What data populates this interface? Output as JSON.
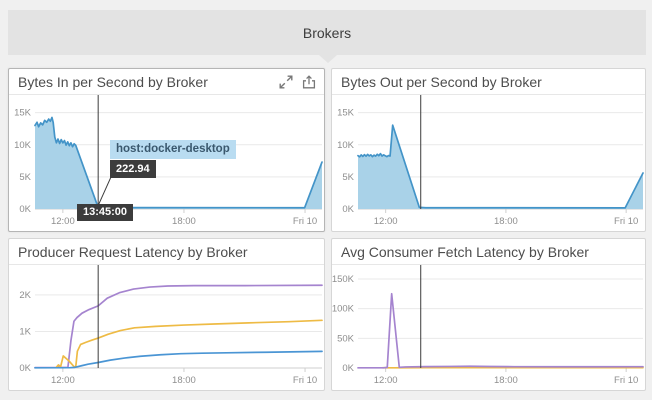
{
  "header": {
    "title": "Brokers"
  },
  "colors": {
    "area_fill": "#a9d2e8",
    "area_line": "#4394c8",
    "purple": "#a584cf",
    "yellow": "#eebb45",
    "blue": "#4a95d4",
    "cursor": "#3b3b3b",
    "tooltip_dark_bg": "#3c3c3c",
    "tooltip_light_bg": "#b9dcf1"
  },
  "panels": [
    {
      "title": "Bytes In per Second by Broker",
      "toolbar_icons": [
        {
          "name": "expand-icon"
        },
        {
          "name": "export-icon"
        }
      ]
    },
    {
      "title": "Bytes Out per Second by Broker"
    },
    {
      "title": "Producer Request Latency by Broker"
    },
    {
      "title": "Avg Consumer Fetch Latency by Broker"
    }
  ],
  "hover_tooltip": {
    "series_label": "host:docker-desktop",
    "value": "222.94",
    "time_label": "13:45:00"
  },
  "chart_data": [
    {
      "type": "area",
      "title": "Bytes In per Second by Broker",
      "xlim": [
        10.62,
        24.84
      ],
      "ylim": [
        0,
        16500
      ],
      "x_ticks": [
        {
          "t": 12,
          "label": "12:00"
        },
        {
          "t": 18,
          "label": "18:00"
        },
        {
          "t": 24,
          "label": "Fri 10"
        }
      ],
      "y_ticks": [
        {
          "v": 0,
          "label": "0K"
        },
        {
          "v": 5000,
          "label": "5K"
        },
        {
          "v": 10000,
          "label": "10K"
        },
        {
          "v": 15000,
          "label": "15K"
        }
      ],
      "cursor_t": 13.75,
      "marker": {
        "t": 13.75,
        "v": 222.94
      },
      "series": [
        {
          "name": "host:docker-desktop",
          "color": "#4394c8",
          "fill": "#a9d2e8",
          "points": [
            [
              10.62,
              13000
            ],
            [
              10.72,
              13500
            ],
            [
              10.8,
              12800
            ],
            [
              10.9,
              13400
            ],
            [
              11.0,
              13100
            ],
            [
              11.1,
              13800
            ],
            [
              11.2,
              13500
            ],
            [
              11.3,
              14000
            ],
            [
              11.38,
              13650
            ],
            [
              11.46,
              14250
            ],
            [
              11.52,
              13500
            ],
            [
              11.6,
              11200
            ],
            [
              11.68,
              10300
            ],
            [
              11.76,
              10900
            ],
            [
              11.84,
              10200
            ],
            [
              11.92,
              10800
            ],
            [
              12.0,
              10300
            ],
            [
              12.08,
              10650
            ],
            [
              12.16,
              9950
            ],
            [
              12.24,
              10450
            ],
            [
              12.32,
              9850
            ],
            [
              12.4,
              10300
            ],
            [
              12.48,
              9700
            ],
            [
              12.56,
              10150
            ],
            [
              12.64,
              9900
            ],
            [
              13.75,
              222.94
            ],
            [
              14.0,
              210
            ],
            [
              23.98,
              200
            ],
            [
              24.84,
              7300
            ]
          ]
        }
      ]
    },
    {
      "type": "area",
      "title": "Bytes Out per Second by Broker",
      "xlim": [
        10.62,
        24.84
      ],
      "ylim": [
        0,
        16500
      ],
      "x_ticks": [
        {
          "t": 12,
          "label": "12:00"
        },
        {
          "t": 18,
          "label": "18:00"
        },
        {
          "t": 24,
          "label": "Fri 10"
        }
      ],
      "y_ticks": [
        {
          "v": 0,
          "label": "0K"
        },
        {
          "v": 5000,
          "label": "5K"
        },
        {
          "v": 10000,
          "label": "10K"
        },
        {
          "v": 15000,
          "label": "15K"
        }
      ],
      "cursor_t": 13.75,
      "series": [
        {
          "color": "#4394c8",
          "fill": "#a9d2e8",
          "points": [
            [
              10.62,
              8300
            ],
            [
              10.7,
              8120
            ],
            [
              10.78,
              8420
            ],
            [
              10.86,
              8180
            ],
            [
              10.94,
              8460
            ],
            [
              11.02,
              8220
            ],
            [
              11.1,
              8500
            ],
            [
              11.18,
              8260
            ],
            [
              11.26,
              8430
            ],
            [
              11.34,
              8150
            ],
            [
              11.42,
              8380
            ],
            [
              11.5,
              8230
            ],
            [
              11.58,
              8520
            ],
            [
              11.66,
              8300
            ],
            [
              11.74,
              8620
            ],
            [
              11.82,
              8240
            ],
            [
              11.9,
              8430
            ],
            [
              11.98,
              8280
            ],
            [
              12.06,
              8150
            ],
            [
              12.14,
              8320
            ],
            [
              12.22,
              8250
            ],
            [
              12.35,
              13050
            ],
            [
              13.68,
              250
            ],
            [
              14.0,
              200
            ],
            [
              23.95,
              180
            ],
            [
              24.84,
              5600
            ]
          ]
        }
      ]
    },
    {
      "type": "line",
      "title": "Producer Request Latency by Broker",
      "xlim": [
        10.62,
        24.84
      ],
      "ylim": [
        0,
        2600
      ],
      "x_ticks": [
        {
          "t": 12,
          "label": "12:00"
        },
        {
          "t": 18,
          "label": "18:00"
        },
        {
          "t": 24,
          "label": "Fri 10"
        }
      ],
      "y_ticks": [
        {
          "v": 0,
          "label": "0K"
        },
        {
          "v": 1000,
          "label": "1K"
        },
        {
          "v": 2000,
          "label": "2K"
        }
      ],
      "cursor_t": 13.75,
      "series": [
        {
          "color": "#a584cf",
          "points": [
            [
              10.62,
              10
            ],
            [
              11.72,
              10
            ],
            [
              11.82,
              70
            ],
            [
              11.92,
              15
            ],
            [
              12.25,
              15
            ],
            [
              12.4,
              750
            ],
            [
              12.55,
              1280
            ],
            [
              12.7,
              1380
            ],
            [
              12.95,
              1500
            ],
            [
              13.3,
              1600
            ],
            [
              13.75,
              1700
            ],
            [
              14.2,
              1910
            ],
            [
              14.8,
              2060
            ],
            [
              15.5,
              2160
            ],
            [
              16.3,
              2215
            ],
            [
              17.2,
              2245
            ],
            [
              18.5,
              2255
            ],
            [
              21.0,
              2255
            ],
            [
              24.84,
              2265
            ]
          ]
        },
        {
          "color": "#eebb45",
          "points": [
            [
              11.66,
              10
            ],
            [
              11.78,
              85
            ],
            [
              11.88,
              15
            ],
            [
              12.02,
              330
            ],
            [
              12.3,
              195
            ],
            [
              12.55,
              40
            ],
            [
              12.64,
              35
            ],
            [
              12.72,
              460
            ],
            [
              12.88,
              645
            ],
            [
              13.15,
              705
            ],
            [
              13.45,
              765
            ],
            [
              13.75,
              820
            ],
            [
              14.25,
              925
            ],
            [
              14.85,
              1025
            ],
            [
              15.55,
              1100
            ],
            [
              16.6,
              1140
            ],
            [
              18.0,
              1175
            ],
            [
              19.5,
              1205
            ],
            [
              21.2,
              1235
            ],
            [
              23.2,
              1268
            ],
            [
              24.84,
              1305
            ]
          ]
        },
        {
          "color": "#4a95d4",
          "points": [
            [
              10.62,
              5
            ],
            [
              12.35,
              8
            ],
            [
              12.6,
              18
            ],
            [
              12.95,
              65
            ],
            [
              13.25,
              105
            ],
            [
              13.75,
              150
            ],
            [
              14.35,
              215
            ],
            [
              15.05,
              272
            ],
            [
              15.85,
              322
            ],
            [
              16.85,
              362
            ],
            [
              17.85,
              392
            ],
            [
              18.9,
              406
            ],
            [
              20.1,
              416
            ],
            [
              22.1,
              432
            ],
            [
              24.84,
              456
            ]
          ]
        }
      ]
    },
    {
      "type": "line",
      "title": "Avg Consumer Fetch Latency by Broker",
      "xlim": [
        10.62,
        24.84
      ],
      "ylim": [
        0,
        160000
      ],
      "x_ticks": [
        {
          "t": 12,
          "label": "12:00"
        },
        {
          "t": 18,
          "label": "18:00"
        },
        {
          "t": 24,
          "label": "Fri 10"
        }
      ],
      "y_ticks": [
        {
          "v": 0,
          "label": "0K"
        },
        {
          "v": 50000,
          "label": "50K"
        },
        {
          "v": 100000,
          "label": "100K"
        },
        {
          "v": 150000,
          "label": "150K"
        }
      ],
      "cursor_t": 13.75,
      "series": [
        {
          "color": "#eebb45",
          "points": [
            [
              11.85,
              400
            ],
            [
              12.15,
              350
            ],
            [
              12.45,
              300
            ],
            [
              12.75,
              450
            ],
            [
              14.0,
              550
            ],
            [
              16.0,
              650
            ],
            [
              18.0,
              560
            ],
            [
              20.0,
              620
            ],
            [
              22.0,
              650
            ],
            [
              24.84,
              680
            ]
          ]
        },
        {
          "color": "#a584cf",
          "points": [
            [
              10.62,
              300
            ],
            [
              11.9,
              350
            ],
            [
              12.08,
              1000
            ],
            [
              12.3,
              125000
            ],
            [
              12.68,
              1200
            ],
            [
              13.0,
              1800
            ],
            [
              14.0,
              2300
            ],
            [
              15.2,
              2600
            ],
            [
              16.2,
              2900
            ],
            [
              17.2,
              2500
            ],
            [
              18.4,
              2200
            ],
            [
              20.5,
              2050
            ],
            [
              22.5,
              2150
            ],
            [
              24.84,
              2250
            ]
          ]
        }
      ]
    }
  ]
}
